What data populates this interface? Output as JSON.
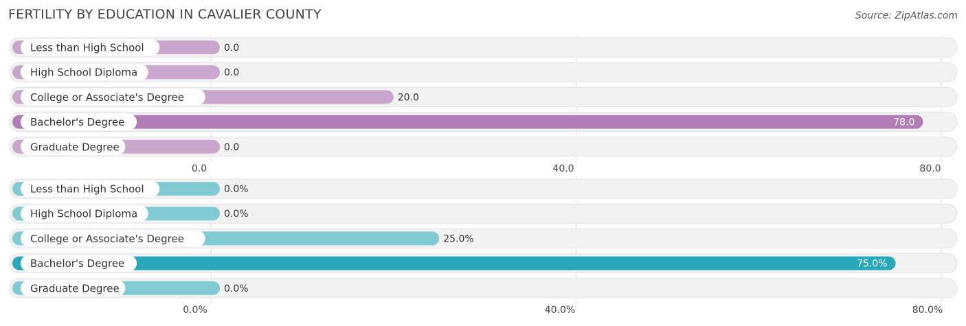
{
  "header": {
    "title": "FERTILITY BY EDUCATION IN CAVALIER COUNTY",
    "source": "Source: ZipAtlas.com"
  },
  "chart_data": [
    {
      "type": "bar",
      "orientation": "horizontal",
      "categories": [
        "Less than High School",
        "High School Diploma",
        "College or Associate's Degree",
        "Bachelor's Degree",
        "Graduate Degree"
      ],
      "values": [
        0.0,
        0.0,
        20.0,
        78.0,
        0.0
      ],
      "value_labels": [
        "0.0",
        "0.0",
        "20.0",
        "78.0",
        "0.0"
      ],
      "xlim": [
        0,
        80
      ],
      "ticks": [
        "0.0",
        "40.0",
        "80.0"
      ],
      "color": "#c9a6cb",
      "highlight_color": "#b07db5"
    },
    {
      "type": "bar",
      "orientation": "horizontal",
      "categories": [
        "Less than High School",
        "High School Diploma",
        "College or Associate's Degree",
        "Bachelor's Degree",
        "Graduate Degree"
      ],
      "values": [
        0.0,
        0.0,
        25.0,
        75.0,
        0.0
      ],
      "value_labels": [
        "0.0%",
        "0.0%",
        "25.0%",
        "75.0%",
        "0.0%"
      ],
      "xlim": [
        0,
        80
      ],
      "ticks": [
        "0.0%",
        "40.0%",
        "80.0%"
      ],
      "color": "#7fcad3",
      "highlight_color": "#28a8bb"
    }
  ]
}
